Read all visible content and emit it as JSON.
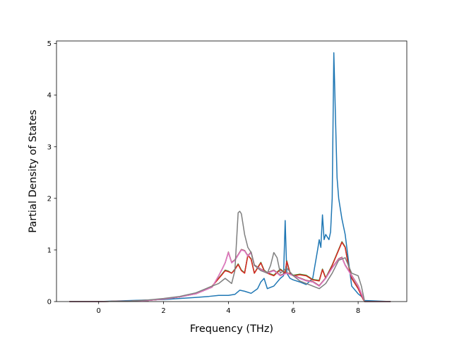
{
  "chart_data": {
    "type": "line",
    "xlabel": "Frequency (THz)",
    "ylabel": "Partial Density of States",
    "xlim": [
      -1.3,
      9.5
    ],
    "ylim": [
      0,
      5.05
    ],
    "xticks": [
      0,
      2,
      4,
      6,
      8
    ],
    "yticks": [
      0,
      1,
      2,
      3,
      4,
      5
    ],
    "grid": false,
    "series": [
      {
        "color": "#1f77b4",
        "x": [
          -0.9,
          0.0,
          0.5,
          1.0,
          1.5,
          2.0,
          2.5,
          3.0,
          3.4,
          3.7,
          4.0,
          4.2,
          4.35,
          4.5,
          4.7,
          4.9,
          5.0,
          5.1,
          5.2,
          5.4,
          5.6,
          5.7,
          5.75,
          5.8,
          5.9,
          6.0,
          6.2,
          6.4,
          6.6,
          6.75,
          6.8,
          6.85,
          6.9,
          6.95,
          7.0,
          7.1,
          7.15,
          7.2,
          7.25,
          7.3,
          7.35,
          7.4,
          7.5,
          7.6,
          7.7,
          7.8,
          8.0,
          8.1,
          8.2,
          9.0
        ],
        "y": [
          0.0,
          0.0,
          0.01,
          0.02,
          0.03,
          0.04,
          0.06,
          0.08,
          0.1,
          0.12,
          0.12,
          0.14,
          0.22,
          0.2,
          0.16,
          0.25,
          0.38,
          0.45,
          0.25,
          0.3,
          0.45,
          0.5,
          1.57,
          0.55,
          0.45,
          0.42,
          0.38,
          0.33,
          0.45,
          1.0,
          1.2,
          1.05,
          1.68,
          1.2,
          1.3,
          1.2,
          1.35,
          2.0,
          4.82,
          3.6,
          2.4,
          2.0,
          1.6,
          1.3,
          0.8,
          0.3,
          0.15,
          0.1,
          0.02,
          0.0
        ]
      },
      {
        "color": "#ff7f0e",
        "x": [
          -0.9,
          0.0,
          1.0,
          1.5,
          2.0,
          2.5,
          3.0,
          3.5,
          3.8,
          3.9,
          4.0,
          4.1,
          4.2,
          4.3,
          4.4,
          4.5,
          4.6,
          4.7,
          4.8,
          4.9,
          5.0,
          5.1,
          5.2,
          5.4,
          5.6,
          5.75,
          5.8,
          5.9,
          6.0,
          6.2,
          6.4,
          6.6,
          6.8,
          6.9,
          7.0,
          7.2,
          7.4,
          7.5,
          7.6,
          7.7,
          7.8,
          8.0,
          8.15,
          8.2,
          9.0
        ],
        "y": [
          0.0,
          0.0,
          0.01,
          0.02,
          0.05,
          0.09,
          0.16,
          0.3,
          0.52,
          0.6,
          0.58,
          0.55,
          0.62,
          0.72,
          0.6,
          0.55,
          0.9,
          0.82,
          0.55,
          0.65,
          0.75,
          0.6,
          0.55,
          0.5,
          0.62,
          0.55,
          0.78,
          0.55,
          0.5,
          0.52,
          0.5,
          0.42,
          0.4,
          0.62,
          0.45,
          0.7,
          1.0,
          1.15,
          1.05,
          0.7,
          0.45,
          0.25,
          0.05,
          0.0,
          0.0
        ]
      },
      {
        "color": "#2ca02c",
        "x": [
          -0.9,
          0.0,
          1.0,
          1.5,
          2.0,
          2.5,
          3.0,
          3.5,
          3.8,
          3.9,
          4.0,
          4.1,
          4.2,
          4.3,
          4.4,
          4.5,
          4.6,
          4.7,
          4.8,
          4.9,
          5.0,
          5.1,
          5.2,
          5.4,
          5.6,
          5.75,
          5.8,
          5.9,
          6.0,
          6.2,
          6.4,
          6.6,
          6.8,
          6.9,
          7.0,
          7.2,
          7.4,
          7.5,
          7.6,
          7.7,
          7.8,
          8.0,
          8.15,
          8.2,
          9.0
        ],
        "y": [
          0.0,
          0.0,
          0.01,
          0.02,
          0.05,
          0.09,
          0.16,
          0.3,
          0.53,
          0.61,
          0.59,
          0.55,
          0.63,
          0.73,
          0.61,
          0.56,
          0.9,
          0.83,
          0.55,
          0.66,
          0.76,
          0.61,
          0.56,
          0.51,
          0.63,
          0.56,
          0.79,
          0.56,
          0.51,
          0.53,
          0.51,
          0.43,
          0.41,
          0.63,
          0.46,
          0.71,
          1.01,
          1.16,
          1.06,
          0.71,
          0.46,
          0.26,
          0.05,
          0.0,
          0.0
        ]
      },
      {
        "color": "#d62728",
        "x": [
          -0.9,
          0.0,
          1.0,
          1.5,
          2.0,
          2.5,
          3.0,
          3.5,
          3.8,
          3.9,
          4.0,
          4.1,
          4.2,
          4.3,
          4.4,
          4.5,
          4.6,
          4.7,
          4.8,
          4.9,
          5.0,
          5.1,
          5.2,
          5.4,
          5.6,
          5.75,
          5.8,
          5.9,
          6.0,
          6.2,
          6.4,
          6.6,
          6.8,
          6.9,
          7.0,
          7.2,
          7.4,
          7.5,
          7.6,
          7.7,
          7.8,
          8.0,
          8.15,
          8.2,
          9.0
        ],
        "y": [
          0.0,
          0.0,
          0.01,
          0.02,
          0.05,
          0.09,
          0.16,
          0.3,
          0.52,
          0.6,
          0.58,
          0.55,
          0.62,
          0.72,
          0.6,
          0.55,
          0.9,
          0.82,
          0.55,
          0.65,
          0.75,
          0.6,
          0.55,
          0.5,
          0.62,
          0.55,
          0.78,
          0.55,
          0.5,
          0.52,
          0.5,
          0.42,
          0.4,
          0.62,
          0.45,
          0.7,
          1.0,
          1.15,
          1.05,
          0.7,
          0.45,
          0.25,
          0.05,
          0.0,
          0.0
        ]
      },
      {
        "color": "#9467bd",
        "x": [
          -0.9,
          0.0,
          1.0,
          1.5,
          2.0,
          2.5,
          3.0,
          3.5,
          3.7,
          3.8,
          3.9,
          4.0,
          4.1,
          4.2,
          4.3,
          4.4,
          4.5,
          4.6,
          4.7,
          4.8,
          5.0,
          5.2,
          5.4,
          5.6,
          5.8,
          6.0,
          6.2,
          6.4,
          6.6,
          6.8,
          7.0,
          7.2,
          7.4,
          7.5,
          7.6,
          7.8,
          8.0,
          8.15,
          8.2,
          9.0
        ],
        "y": [
          0.0,
          0.0,
          0.01,
          0.02,
          0.05,
          0.09,
          0.15,
          0.28,
          0.5,
          0.62,
          0.75,
          0.95,
          0.75,
          0.8,
          0.9,
          1.0,
          0.98,
          0.88,
          0.95,
          0.7,
          0.62,
          0.55,
          0.6,
          0.5,
          0.55,
          0.5,
          0.45,
          0.4,
          0.38,
          0.3,
          0.45,
          0.65,
          0.82,
          0.85,
          0.7,
          0.5,
          0.3,
          0.08,
          0.0,
          0.0
        ]
      },
      {
        "color": "#8c564b",
        "x": [
          -0.9,
          0.0,
          1.0,
          1.5,
          2.0,
          2.5,
          3.0,
          3.5,
          3.7,
          3.8,
          3.9,
          4.0,
          4.1,
          4.2,
          4.3,
          4.4,
          4.5,
          4.6,
          4.7,
          4.8,
          5.0,
          5.2,
          5.4,
          5.6,
          5.8,
          6.0,
          6.2,
          6.4,
          6.6,
          6.8,
          7.0,
          7.2,
          7.4,
          7.5,
          7.6,
          7.8,
          8.0,
          8.15,
          8.2,
          9.0
        ],
        "y": [
          0.0,
          0.0,
          0.01,
          0.02,
          0.05,
          0.09,
          0.15,
          0.28,
          0.5,
          0.62,
          0.75,
          0.96,
          0.76,
          0.81,
          0.91,
          1.01,
          0.99,
          0.89,
          0.96,
          0.71,
          0.63,
          0.56,
          0.61,
          0.51,
          0.56,
          0.51,
          0.46,
          0.41,
          0.39,
          0.31,
          0.46,
          0.66,
          0.83,
          0.86,
          0.71,
          0.51,
          0.31,
          0.08,
          0.0,
          0.0
        ]
      },
      {
        "color": "#e377c2",
        "x": [
          -0.9,
          0.0,
          1.0,
          1.5,
          2.0,
          2.5,
          3.0,
          3.5,
          3.7,
          3.8,
          3.9,
          4.0,
          4.1,
          4.2,
          4.3,
          4.4,
          4.5,
          4.6,
          4.7,
          4.8,
          5.0,
          5.2,
          5.4,
          5.6,
          5.8,
          6.0,
          6.2,
          6.4,
          6.6,
          6.8,
          7.0,
          7.2,
          7.4,
          7.5,
          7.6,
          7.8,
          8.0,
          8.15,
          8.2,
          9.0
        ],
        "y": [
          0.0,
          0.0,
          0.01,
          0.02,
          0.05,
          0.09,
          0.15,
          0.28,
          0.5,
          0.62,
          0.75,
          0.95,
          0.75,
          0.8,
          0.9,
          1.0,
          0.98,
          0.88,
          0.95,
          0.7,
          0.62,
          0.55,
          0.6,
          0.5,
          0.55,
          0.5,
          0.45,
          0.4,
          0.38,
          0.3,
          0.45,
          0.65,
          0.82,
          0.85,
          0.7,
          0.5,
          0.3,
          0.08,
          0.0,
          0.0
        ]
      },
      {
        "color": "#7f7f7f",
        "x": [
          -0.9,
          0.0,
          1.0,
          1.5,
          2.0,
          2.5,
          3.0,
          3.5,
          3.7,
          3.8,
          3.9,
          4.0,
          4.1,
          4.2,
          4.3,
          4.35,
          4.4,
          4.5,
          4.6,
          4.7,
          4.8,
          5.0,
          5.2,
          5.3,
          5.4,
          5.5,
          5.6,
          5.8,
          6.0,
          6.2,
          6.4,
          6.6,
          6.8,
          7.0,
          7.2,
          7.4,
          7.6,
          7.7,
          7.8,
          8.0,
          8.1,
          8.2,
          9.0
        ],
        "y": [
          0.0,
          0.0,
          0.01,
          0.03,
          0.06,
          0.1,
          0.17,
          0.3,
          0.35,
          0.4,
          0.45,
          0.4,
          0.35,
          0.6,
          1.72,
          1.75,
          1.7,
          1.3,
          1.05,
          0.95,
          0.7,
          0.6,
          0.55,
          0.7,
          0.95,
          0.85,
          0.55,
          0.65,
          0.5,
          0.4,
          0.35,
          0.3,
          0.25,
          0.35,
          0.55,
          0.8,
          0.85,
          0.7,
          0.55,
          0.5,
          0.3,
          0.0,
          0.0
        ]
      }
    ]
  }
}
